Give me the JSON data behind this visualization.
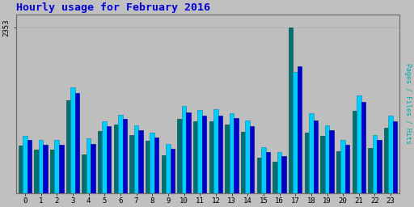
{
  "title": "Hourly usage for February 2016",
  "title_color": "#0000dd",
  "title_fontsize": 9.5,
  "ylabel_right": "Pages / Files / Hits",
  "ylabel_right_color": "#00aaaa",
  "background_color": "#c0c0c0",
  "plot_bg_color": "#bebebe",
  "border_color": "#707070",
  "ymax": 2353,
  "hours": [
    0,
    1,
    2,
    3,
    4,
    5,
    6,
    7,
    8,
    9,
    10,
    11,
    12,
    13,
    14,
    15,
    16,
    17,
    18,
    19,
    20,
    21,
    22,
    23
  ],
  "pages": [
    680,
    620,
    620,
    1320,
    560,
    890,
    980,
    830,
    750,
    540,
    1060,
    1020,
    1020,
    980,
    870,
    510,
    450,
    2353,
    860,
    820,
    600,
    1170,
    650,
    930
  ],
  "files": [
    820,
    760,
    760,
    1500,
    780,
    1020,
    1120,
    970,
    860,
    700,
    1240,
    1180,
    1200,
    1140,
    1030,
    660,
    590,
    1720,
    1140,
    970,
    760,
    1390,
    830,
    1100
  ],
  "hits": [
    760,
    690,
    690,
    1430,
    700,
    950,
    1060,
    900,
    800,
    630,
    1150,
    1100,
    1100,
    1070,
    950,
    590,
    530,
    1800,
    1040,
    900,
    690,
    1300,
    760,
    1020
  ],
  "pages_color": "#007070",
  "files_color": "#00ccff",
  "hits_color": "#0000cc",
  "bar_width": 0.28,
  "grid_color": "#aaaaaa"
}
